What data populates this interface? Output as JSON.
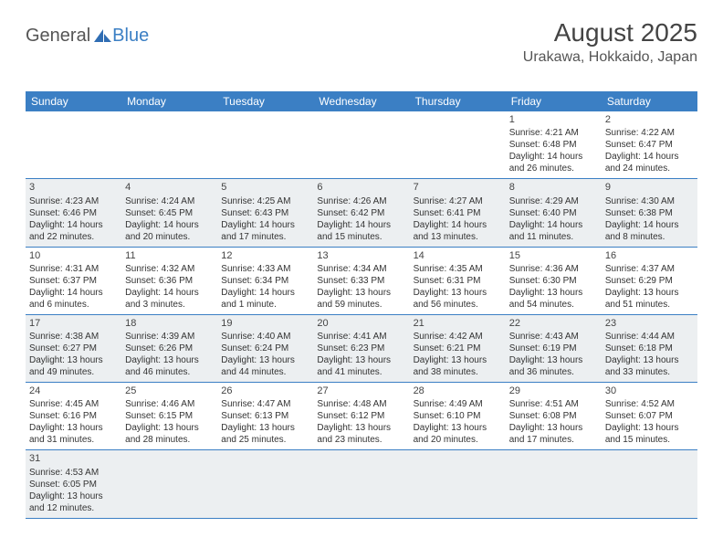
{
  "brand": {
    "part1": "General",
    "part2": "Blue"
  },
  "header": {
    "title": "August 2025",
    "location": "Urakawa, Hokkaido, Japan"
  },
  "colors": {
    "header_bg": "#3b7fc4",
    "header_text": "#ffffff",
    "shaded_bg": "#eceff1",
    "border": "#3b7fc4",
    "text": "#333333",
    "title_text": "#444444"
  },
  "day_names": [
    "Sunday",
    "Monday",
    "Tuesday",
    "Wednesday",
    "Thursday",
    "Friday",
    "Saturday"
  ],
  "weeks": [
    [
      {
        "blank": true,
        "shaded": false
      },
      {
        "blank": true,
        "shaded": false
      },
      {
        "blank": true,
        "shaded": false
      },
      {
        "blank": true,
        "shaded": false
      },
      {
        "blank": true,
        "shaded": false
      },
      {
        "day": 1,
        "shaded": false,
        "sunrise": "4:21 AM",
        "sunset": "6:48 PM",
        "daylight": "14 hours and 26 minutes."
      },
      {
        "day": 2,
        "shaded": false,
        "sunrise": "4:22 AM",
        "sunset": "6:47 PM",
        "daylight": "14 hours and 24 minutes."
      }
    ],
    [
      {
        "day": 3,
        "shaded": true,
        "sunrise": "4:23 AM",
        "sunset": "6:46 PM",
        "daylight": "14 hours and 22 minutes."
      },
      {
        "day": 4,
        "shaded": true,
        "sunrise": "4:24 AM",
        "sunset": "6:45 PM",
        "daylight": "14 hours and 20 minutes."
      },
      {
        "day": 5,
        "shaded": true,
        "sunrise": "4:25 AM",
        "sunset": "6:43 PM",
        "daylight": "14 hours and 17 minutes."
      },
      {
        "day": 6,
        "shaded": true,
        "sunrise": "4:26 AM",
        "sunset": "6:42 PM",
        "daylight": "14 hours and 15 minutes."
      },
      {
        "day": 7,
        "shaded": true,
        "sunrise": "4:27 AM",
        "sunset": "6:41 PM",
        "daylight": "14 hours and 13 minutes."
      },
      {
        "day": 8,
        "shaded": true,
        "sunrise": "4:29 AM",
        "sunset": "6:40 PM",
        "daylight": "14 hours and 11 minutes."
      },
      {
        "day": 9,
        "shaded": true,
        "sunrise": "4:30 AM",
        "sunset": "6:38 PM",
        "daylight": "14 hours and 8 minutes."
      }
    ],
    [
      {
        "day": 10,
        "shaded": false,
        "sunrise": "4:31 AM",
        "sunset": "6:37 PM",
        "daylight": "14 hours and 6 minutes."
      },
      {
        "day": 11,
        "shaded": false,
        "sunrise": "4:32 AM",
        "sunset": "6:36 PM",
        "daylight": "14 hours and 3 minutes."
      },
      {
        "day": 12,
        "shaded": false,
        "sunrise": "4:33 AM",
        "sunset": "6:34 PM",
        "daylight": "14 hours and 1 minute."
      },
      {
        "day": 13,
        "shaded": false,
        "sunrise": "4:34 AM",
        "sunset": "6:33 PM",
        "daylight": "13 hours and 59 minutes."
      },
      {
        "day": 14,
        "shaded": false,
        "sunrise": "4:35 AM",
        "sunset": "6:31 PM",
        "daylight": "13 hours and 56 minutes."
      },
      {
        "day": 15,
        "shaded": false,
        "sunrise": "4:36 AM",
        "sunset": "6:30 PM",
        "daylight": "13 hours and 54 minutes."
      },
      {
        "day": 16,
        "shaded": false,
        "sunrise": "4:37 AM",
        "sunset": "6:29 PM",
        "daylight": "13 hours and 51 minutes."
      }
    ],
    [
      {
        "day": 17,
        "shaded": true,
        "sunrise": "4:38 AM",
        "sunset": "6:27 PM",
        "daylight": "13 hours and 49 minutes."
      },
      {
        "day": 18,
        "shaded": true,
        "sunrise": "4:39 AM",
        "sunset": "6:26 PM",
        "daylight": "13 hours and 46 minutes."
      },
      {
        "day": 19,
        "shaded": true,
        "sunrise": "4:40 AM",
        "sunset": "6:24 PM",
        "daylight": "13 hours and 44 minutes."
      },
      {
        "day": 20,
        "shaded": true,
        "sunrise": "4:41 AM",
        "sunset": "6:23 PM",
        "daylight": "13 hours and 41 minutes."
      },
      {
        "day": 21,
        "shaded": true,
        "sunrise": "4:42 AM",
        "sunset": "6:21 PM",
        "daylight": "13 hours and 38 minutes."
      },
      {
        "day": 22,
        "shaded": true,
        "sunrise": "4:43 AM",
        "sunset": "6:19 PM",
        "daylight": "13 hours and 36 minutes."
      },
      {
        "day": 23,
        "shaded": true,
        "sunrise": "4:44 AM",
        "sunset": "6:18 PM",
        "daylight": "13 hours and 33 minutes."
      }
    ],
    [
      {
        "day": 24,
        "shaded": false,
        "sunrise": "4:45 AM",
        "sunset": "6:16 PM",
        "daylight": "13 hours and 31 minutes."
      },
      {
        "day": 25,
        "shaded": false,
        "sunrise": "4:46 AM",
        "sunset": "6:15 PM",
        "daylight": "13 hours and 28 minutes."
      },
      {
        "day": 26,
        "shaded": false,
        "sunrise": "4:47 AM",
        "sunset": "6:13 PM",
        "daylight": "13 hours and 25 minutes."
      },
      {
        "day": 27,
        "shaded": false,
        "sunrise": "4:48 AM",
        "sunset": "6:12 PM",
        "daylight": "13 hours and 23 minutes."
      },
      {
        "day": 28,
        "shaded": false,
        "sunrise": "4:49 AM",
        "sunset": "6:10 PM",
        "daylight": "13 hours and 20 minutes."
      },
      {
        "day": 29,
        "shaded": false,
        "sunrise": "4:51 AM",
        "sunset": "6:08 PM",
        "daylight": "13 hours and 17 minutes."
      },
      {
        "day": 30,
        "shaded": false,
        "sunrise": "4:52 AM",
        "sunset": "6:07 PM",
        "daylight": "13 hours and 15 minutes."
      }
    ],
    [
      {
        "day": 31,
        "shaded": true,
        "sunrise": "4:53 AM",
        "sunset": "6:05 PM",
        "daylight": "13 hours and 12 minutes."
      },
      {
        "blank": true,
        "shaded": true
      },
      {
        "blank": true,
        "shaded": true
      },
      {
        "blank": true,
        "shaded": true
      },
      {
        "blank": true,
        "shaded": true
      },
      {
        "blank": true,
        "shaded": true
      },
      {
        "blank": true,
        "shaded": true
      }
    ]
  ],
  "labels": {
    "sunrise": "Sunrise:",
    "sunset": "Sunset:",
    "daylight": "Daylight:"
  }
}
